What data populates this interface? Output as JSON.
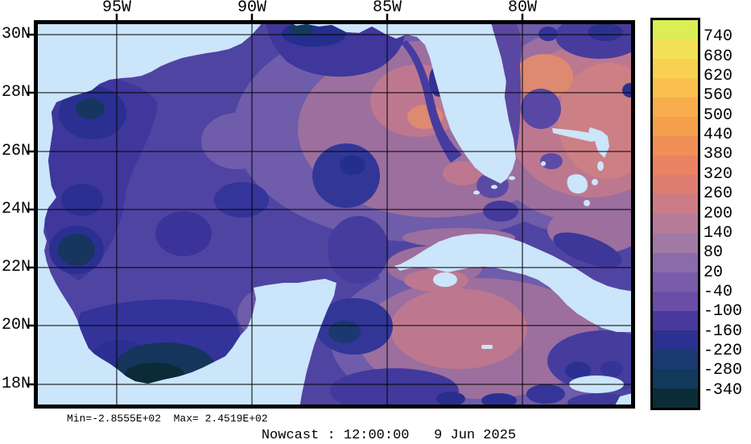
{
  "figure": {
    "caption": "Nowcast : 12:00:00   9 Jun 2025",
    "stats_line": "Min=-2.8555E+02  Max= 2.4519E+02",
    "min_value_label": "-2.8555E+02",
    "max_value_label": "2.4519E+02"
  },
  "axes": {
    "lon_labels": [
      "95W",
      "90W",
      "85W",
      "80W"
    ],
    "lat_labels": [
      "30N",
      "28N",
      "26N",
      "24N",
      "22N",
      "20N",
      "18N"
    ]
  },
  "colorbar": {
    "tick_labels": [
      "740",
      "680",
      "620",
      "560",
      "500",
      "440",
      "380",
      "320",
      "260",
      "200",
      "140",
      "80",
      "20",
      "-40",
      "-100",
      "-160",
      "-220",
      "-280",
      "-340"
    ],
    "band_colors": [
      "#dcee55",
      "#f2e056",
      "#f8d150",
      "#f9c04e",
      "#f8ae4c",
      "#f59f4e",
      "#f08f56",
      "#ea8263",
      "#dd7d72",
      "#cc7c85",
      "#b77b98",
      "#a179a5",
      "#8a6bab",
      "#785cab",
      "#6a4da6",
      "#47399c",
      "#2c3091",
      "#1a3a74",
      "#123a5c",
      "#0c2c38"
    ]
  },
  "map": {
    "land_color": "#cbe5fa",
    "ocean_base_color": "#5044a2",
    "grid_color": "#000000",
    "background": "#ffffff"
  },
  "chart_data": {
    "type": "heatmap",
    "title": "Nowcast : 12:00:00   9 Jun 2025",
    "region": "Gulf of Mexico and northwest Caribbean",
    "x_ticks": [
      "95W",
      "90W",
      "85W",
      "80W"
    ],
    "y_ticks": [
      "30N",
      "28N",
      "26N",
      "24N",
      "22N",
      "20N",
      "18N"
    ],
    "colorbar_levels": [
      740,
      680,
      620,
      560,
      500,
      440,
      380,
      320,
      260,
      200,
      140,
      80,
      20,
      -40,
      -100,
      -160,
      -220,
      -280,
      -340
    ],
    "value_min": -285.55,
    "value_max": 245.19,
    "legend_position": "right colorbar",
    "grid": true,
    "notes": "Filled-contour model field plotted over water; land is masked light blue. Negative (dark blue) pools in western Gulf and Bay of Campeche; positive (pink/salmon) field east of Florida and in the Atlantic/Caribbean."
  }
}
